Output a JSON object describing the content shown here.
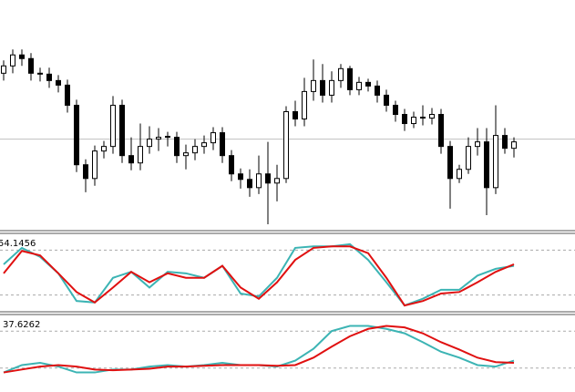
{
  "chart_data": [
    {
      "type": "candlestick",
      "ylim": [
        0,
        250
      ],
      "hline": 98,
      "open": [
        170,
        178,
        190,
        186,
        170,
        169,
        162,
        157,
        135,
        70,
        55,
        85,
        90,
        135,
        80,
        72,
        90,
        98,
        100,
        100,
        80,
        83,
        90,
        94,
        105,
        80,
        60,
        54,
        45,
        60,
        50,
        55,
        128,
        120,
        150,
        162,
        146,
        162,
        175,
        152,
        160,
        156,
        146,
        135,
        125,
        115,
        122,
        121,
        125,
        90,
        55,
        65,
        90,
        95,
        45,
        102,
        88
      ],
      "high": [
        184,
        196,
        196,
        192,
        176,
        176,
        168,
        163,
        141,
        76,
        91,
        96,
        145,
        141,
        100,
        115,
        112,
        110,
        106,
        106,
        92,
        98,
        102,
        111,
        111,
        86,
        66,
        65,
        80,
        95,
        70,
        134,
        140,
        165,
        185,
        180,
        172,
        180,
        178,
        166,
        164,
        162,
        152,
        140,
        131,
        128,
        135,
        132,
        131,
        96,
        70,
        100,
        110,
        110,
        135,
        110,
        100
      ],
      "low": [
        162,
        170,
        178,
        162,
        161,
        154,
        149,
        127,
        62,
        40,
        47,
        77,
        82,
        72,
        64,
        64,
        82,
        85,
        90,
        72,
        65,
        75,
        82,
        86,
        72,
        52,
        44,
        35,
        38,
        5,
        30,
        50,
        112,
        112,
        140,
        138,
        138,
        154,
        146,
        146,
        150,
        138,
        128,
        117,
        107,
        110,
        113,
        114,
        82,
        22,
        50,
        60,
        80,
        15,
        38,
        82,
        78
      ],
      "close": [
        178,
        190,
        186,
        170,
        169,
        162,
        157,
        135,
        70,
        55,
        85,
        90,
        135,
        80,
        72,
        90,
        98,
        100,
        101,
        80,
        83,
        90,
        94,
        105,
        80,
        60,
        54,
        45,
        60,
        50,
        55,
        128,
        120,
        150,
        162,
        146,
        162,
        175,
        152,
        160,
        156,
        146,
        135,
        125,
        115,
        122,
        121,
        125,
        90,
        55,
        65,
        90,
        95,
        45,
        102,
        88,
        95
      ]
    },
    {
      "type": "line",
      "label": "54.1456",
      "ylim": [
        0,
        100
      ],
      "levels": [
        80,
        20
      ],
      "series": [
        {
          "color": "#3cb4b4",
          "values": [
            61,
            83,
            71,
            49,
            12,
            10,
            43,
            51,
            30,
            51,
            49,
            43,
            59,
            22,
            18,
            43,
            83,
            85,
            85,
            88,
            67,
            37,
            6,
            15,
            27,
            27,
            46,
            55,
            59
          ]
        },
        {
          "color": "#e01010",
          "values": [
            49,
            79,
            73,
            49,
            24,
            10,
            30,
            51,
            37,
            49,
            43,
            43,
            59,
            30,
            15,
            37,
            67,
            83,
            85,
            85,
            76,
            43,
            6,
            12,
            22,
            24,
            37,
            51,
            61
          ]
        }
      ]
    },
    {
      "type": "line",
      "label": "37.6262",
      "ylim": [
        0,
        100
      ],
      "levels": [
        80,
        30
      ],
      "series": [
        {
          "color": "#3cb4b4",
          "values": [
            24,
            34,
            37,
            32,
            24,
            24,
            28,
            28,
            32,
            34,
            32,
            34,
            37,
            34,
            34,
            32,
            40,
            56,
            80,
            87,
            87,
            83,
            77,
            65,
            52,
            44,
            34,
            32,
            40
          ]
        },
        {
          "color": "#e01010",
          "values": [
            24,
            28,
            32,
            34,
            32,
            28,
            27,
            28,
            29,
            32,
            32,
            33,
            34,
            34,
            34,
            33,
            34,
            44,
            59,
            73,
            83,
            87,
            85,
            77,
            65,
            55,
            44,
            38,
            37
          ]
        }
      ]
    }
  ]
}
